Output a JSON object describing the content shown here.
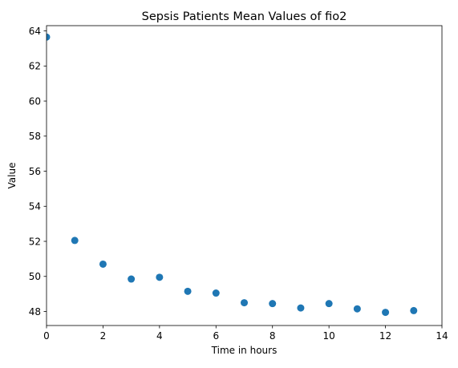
{
  "chart_data": {
    "type": "scatter",
    "title": "Sepsis Patients Mean Values of fio2",
    "xlabel": "Time in hours",
    "ylabel": "Value",
    "xlim": [
      0,
      14
    ],
    "ylim": [
      47.2,
      64.3
    ],
    "xticks": [
      0,
      2,
      4,
      6,
      8,
      10,
      12,
      14
    ],
    "yticks": [
      48,
      50,
      52,
      54,
      56,
      58,
      60,
      62,
      64
    ],
    "grid": false,
    "legend": "none",
    "marker_color": "#1f77b4",
    "x": [
      0,
      1,
      2,
      3,
      4,
      5,
      6,
      7,
      8,
      9,
      10,
      11,
      12,
      13
    ],
    "y": [
      63.65,
      52.05,
      50.7,
      49.85,
      49.95,
      49.15,
      49.05,
      48.5,
      48.45,
      48.2,
      48.45,
      48.15,
      47.95,
      48.05
    ]
  }
}
